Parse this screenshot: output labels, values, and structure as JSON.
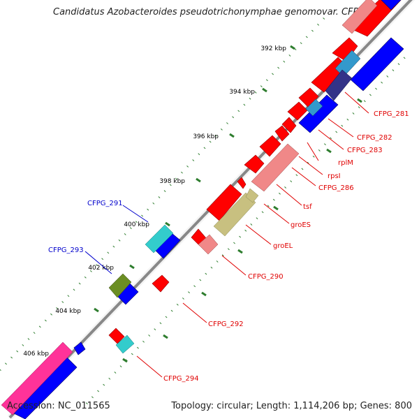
{
  "title": "Candidatus Azobacteroides pseudotrichonymphae genomovar. CFP...",
  "footer": {
    "accession": "Accession: NC_011565",
    "summary": "Topology: circular; Length: 1,114,206 bp; Genes: 800"
  },
  "colors": {
    "backbone": "#888888",
    "tick": "#2e7d2e",
    "label_red": "#e00000",
    "label_blue": "#0000cc",
    "forward_cds": "#ff0000",
    "reverse_cds": "#0000ff",
    "rRNA_pink": "#f08888",
    "tRNA_cyan": "#33cccc",
    "olive": "#6b8e23",
    "khaki": "#c8c080",
    "magenta": "#ff3399",
    "slate": "#333388"
  },
  "scale_labels": [
    "392 kbp",
    "394 kbp",
    "396 kbp",
    "398 kbp",
    "400 kbp",
    "402 kbp",
    "404 kbp",
    "406 kbp"
  ],
  "gene_labels": [
    {
      "text": "CFPG_281",
      "color": "red"
    },
    {
      "text": "CFPG_282",
      "color": "red"
    },
    {
      "text": "CFPG_283",
      "color": "red"
    },
    {
      "text": "rplM",
      "color": "red"
    },
    {
      "text": "rpsI",
      "color": "red"
    },
    {
      "text": "CFPG_286",
      "color": "red"
    },
    {
      "text": "tsf",
      "color": "red"
    },
    {
      "text": "groES",
      "color": "red"
    },
    {
      "text": "groEL",
      "color": "red"
    },
    {
      "text": "CFPG_290",
      "color": "red"
    },
    {
      "text": "CFPG_291",
      "color": "blue"
    },
    {
      "text": "CFPG_292",
      "color": "red"
    },
    {
      "text": "CFPG_293",
      "color": "blue"
    },
    {
      "text": "CFPG_294",
      "color": "red"
    }
  ]
}
